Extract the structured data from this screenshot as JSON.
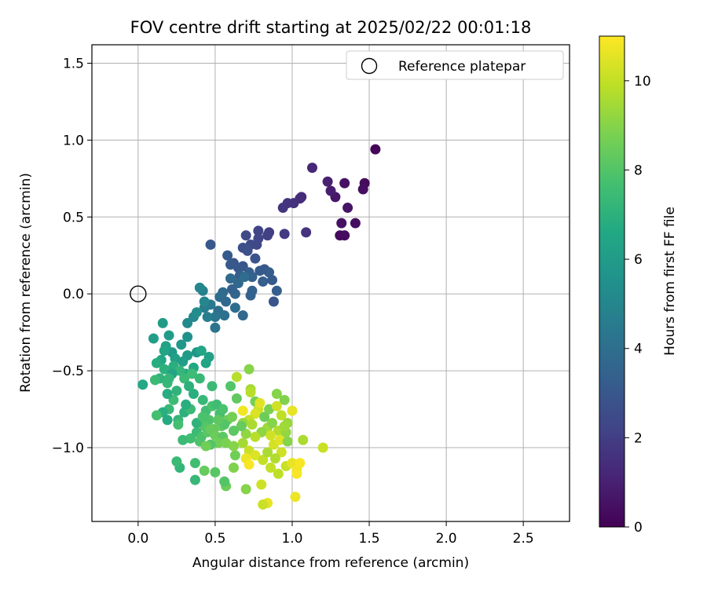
{
  "chart_data": {
    "type": "scatter",
    "title": "FOV centre drift starting at 2025/02/22 00:01:18",
    "xlabel": "Angular distance from reference (arcmin)",
    "ylabel": "Rotation from reference (arcmin)",
    "xlim": [
      -0.3,
      2.8
    ],
    "ylim": [
      -1.48,
      1.62
    ],
    "xticks": [
      "0.0",
      "0.5",
      "1.0",
      "1.5",
      "2.0",
      "2.5"
    ],
    "yticks": [
      "−1.0",
      "−0.5",
      "0.0",
      "0.5",
      "1.0",
      "1.5"
    ],
    "grid": true,
    "legend": {
      "location": "upper right",
      "entries": [
        "Reference platepar"
      ]
    },
    "colorbar": {
      "label": "Hours from first FF file",
      "range": [
        0,
        11
      ],
      "ticks": [
        "0",
        "2",
        "4",
        "6",
        "8",
        "10"
      ],
      "colormap": "viridis"
    },
    "reference_point": {
      "x": 0.0,
      "y": 0.0
    },
    "points": [
      [
        1.54,
        0.94,
        0.15
      ],
      [
        1.47,
        0.72,
        0.3
      ],
      [
        1.46,
        0.68,
        0.4
      ],
      [
        1.34,
        0.72,
        0.5
      ],
      [
        1.36,
        0.56,
        0.6
      ],
      [
        1.32,
        0.46,
        0.5
      ],
      [
        1.41,
        0.46,
        0.4
      ],
      [
        1.31,
        0.38,
        0.3
      ],
      [
        1.34,
        0.38,
        0.35
      ],
      [
        1.28,
        0.63,
        0.7
      ],
      [
        1.25,
        0.67,
        0.9
      ],
      [
        1.23,
        0.73,
        1.0
      ],
      [
        1.13,
        0.82,
        1.2
      ],
      [
        1.06,
        0.63,
        1.3
      ],
      [
        1.05,
        0.62,
        1.4
      ],
      [
        1.01,
        0.59,
        1.5
      ],
      [
        0.97,
        0.59,
        1.6
      ],
      [
        0.94,
        0.56,
        1.7
      ],
      [
        1.09,
        0.4,
        1.6
      ],
      [
        0.95,
        0.39,
        1.9
      ],
      [
        0.85,
        0.4,
        2.0
      ],
      [
        0.84,
        0.38,
        2.1
      ],
      [
        0.78,
        0.41,
        2.2
      ],
      [
        0.78,
        0.36,
        2.3
      ],
      [
        0.7,
        0.38,
        2.4
      ],
      [
        0.73,
        0.32,
        2.5
      ],
      [
        0.68,
        0.3,
        2.6
      ],
      [
        0.77,
        0.32,
        2.4
      ],
      [
        0.71,
        0.28,
        2.7
      ],
      [
        0.76,
        0.23,
        2.8
      ],
      [
        0.68,
        0.18,
        2.9
      ],
      [
        0.65,
        0.17,
        3.0
      ],
      [
        0.58,
        0.25,
        3.1
      ],
      [
        0.6,
        0.19,
        3.2
      ],
      [
        0.62,
        0.2,
        3.0
      ],
      [
        0.66,
        0.12,
        3.2
      ],
      [
        0.72,
        0.14,
        3.3
      ],
      [
        0.74,
        0.11,
        3.4
      ],
      [
        0.82,
        0.16,
        3.0
      ],
      [
        0.79,
        0.15,
        3.1
      ],
      [
        0.85,
        0.14,
        3.2
      ],
      [
        0.81,
        0.08,
        3.3
      ],
      [
        0.87,
        0.09,
        3.1
      ],
      [
        0.9,
        0.02,
        3.2
      ],
      [
        0.88,
        -0.05,
        2.9
      ],
      [
        0.74,
        0.02,
        3.5
      ],
      [
        0.73,
        -0.01,
        3.4
      ],
      [
        0.63,
        0.0,
        3.6
      ],
      [
        0.61,
        0.03,
        3.4
      ],
      [
        0.6,
        0.1,
        3.8
      ],
      [
        0.65,
        0.07,
        3.7
      ],
      [
        0.69,
        0.11,
        3.9
      ],
      [
        0.55,
        0.01,
        3.8
      ],
      [
        0.53,
        -0.02,
        3.9
      ],
      [
        0.57,
        -0.05,
        3.7
      ],
      [
        0.52,
        -0.11,
        4.0
      ],
      [
        0.56,
        -0.14,
        4.1
      ],
      [
        0.5,
        -0.15,
        4.3
      ],
      [
        0.47,
        -0.07,
        4.4
      ],
      [
        0.43,
        -0.09,
        4.6
      ],
      [
        0.68,
        -0.14,
        3.7
      ],
      [
        0.63,
        -0.09,
        3.9
      ],
      [
        0.5,
        -0.22,
        4.2
      ],
      [
        0.47,
        0.32,
        3.0
      ],
      [
        0.45,
        -0.15,
        4.6
      ],
      [
        0.42,
        0.02,
        4.8
      ],
      [
        0.4,
        0.04,
        5.0
      ],
      [
        0.43,
        -0.05,
        5.0
      ],
      [
        0.36,
        -0.15,
        5.1
      ],
      [
        0.38,
        -0.12,
        5.3
      ],
      [
        0.32,
        -0.19,
        5.2
      ],
      [
        0.32,
        -0.28,
        5.5
      ],
      [
        0.28,
        -0.33,
        5.8
      ],
      [
        0.22,
        -0.38,
        5.9
      ],
      [
        0.2,
        -0.27,
        6.0
      ],
      [
        0.16,
        -0.19,
        6.0
      ],
      [
        0.1,
        -0.29,
        6.1
      ],
      [
        0.18,
        -0.34,
        6.3
      ],
      [
        0.17,
        -0.37,
        6.4
      ],
      [
        0.24,
        -0.42,
        6.2
      ],
      [
        0.32,
        -0.4,
        6.0
      ],
      [
        0.29,
        -0.44,
        6.1
      ],
      [
        0.38,
        -0.38,
        5.8
      ],
      [
        0.41,
        -0.37,
        6.5
      ],
      [
        0.46,
        -0.41,
        6.2
      ],
      [
        0.44,
        -0.45,
        6.4
      ],
      [
        0.36,
        -0.48,
        6.6
      ],
      [
        0.31,
        -0.52,
        6.7
      ],
      [
        0.15,
        -0.43,
        6.5
      ],
      [
        0.12,
        -0.45,
        6.8
      ],
      [
        0.03,
        -0.59,
        6.6
      ],
      [
        0.17,
        -0.49,
        7.0
      ],
      [
        0.14,
        -0.55,
        7.1
      ],
      [
        0.19,
        -0.58,
        7.3
      ],
      [
        0.23,
        -0.47,
        6.9
      ],
      [
        0.27,
        -0.5,
        7.2
      ],
      [
        0.3,
        -0.55,
        7.4
      ],
      [
        0.35,
        -0.52,
        7.5
      ],
      [
        0.4,
        -0.55,
        7.3
      ],
      [
        0.25,
        -0.63,
        7.1
      ],
      [
        0.23,
        -0.69,
        7.5
      ],
      [
        0.19,
        -0.65,
        6.8
      ],
      [
        0.2,
        -0.75,
        7.3
      ],
      [
        0.16,
        -0.77,
        6.9
      ],
      [
        0.12,
        -0.79,
        7.7
      ],
      [
        0.19,
        -0.82,
        6.7
      ],
      [
        0.26,
        -0.82,
        7.2
      ],
      [
        0.3,
        -0.77,
        7.0
      ],
      [
        0.34,
        -0.75,
        7.4
      ],
      [
        0.36,
        -0.65,
        6.9
      ],
      [
        0.42,
        -0.69,
        7.3
      ],
      [
        0.44,
        -0.76,
        7.6
      ],
      [
        0.48,
        -0.73,
        7.8
      ],
      [
        0.51,
        -0.72,
        7.5
      ],
      [
        0.53,
        -0.78,
        7.7
      ],
      [
        0.46,
        -0.82,
        7.9
      ],
      [
        0.43,
        -0.86,
        8.0
      ],
      [
        0.38,
        -0.9,
        7.4
      ],
      [
        0.41,
        -0.93,
        7.8
      ],
      [
        0.45,
        -0.9,
        8.1
      ],
      [
        0.49,
        -0.88,
        8.3
      ],
      [
        0.5,
        -0.92,
        8.5
      ],
      [
        0.54,
        -0.86,
        8.4
      ],
      [
        0.55,
        -0.93,
        8.2
      ],
      [
        0.52,
        -0.97,
        8.6
      ],
      [
        0.57,
        -0.97,
        8.8
      ],
      [
        0.47,
        -0.98,
        8.0
      ],
      [
        0.4,
        -0.96,
        7.9
      ],
      [
        0.34,
        -0.94,
        7.6
      ],
      [
        0.29,
        -0.95,
        7.4
      ],
      [
        0.58,
        -0.82,
        8.5
      ],
      [
        0.61,
        -0.8,
        8.7
      ],
      [
        0.56,
        -0.85,
        8.0
      ],
      [
        0.6,
        -0.6,
        8.0
      ],
      [
        0.64,
        -0.68,
        8.3
      ],
      [
        0.64,
        -0.54,
        9.8
      ],
      [
        0.72,
        -0.49,
        9.0
      ],
      [
        0.73,
        -0.62,
        9.5
      ],
      [
        0.73,
        -0.64,
        9.8
      ],
      [
        0.76,
        -0.7,
        8.7
      ],
      [
        0.78,
        -0.75,
        10.2
      ],
      [
        0.79,
        -0.71,
        10.5
      ],
      [
        0.76,
        -0.78,
        10.4
      ],
      [
        0.68,
        -0.76,
        10.8
      ],
      [
        0.72,
        -0.82,
        10.0
      ],
      [
        0.68,
        -0.84,
        9.2
      ],
      [
        0.74,
        -0.85,
        9.6
      ],
      [
        0.82,
        -0.8,
        8.5
      ],
      [
        0.84,
        -0.87,
        9.4
      ],
      [
        0.87,
        -0.84,
        9.0
      ],
      [
        0.9,
        -0.65,
        9.0
      ],
      [
        0.95,
        -0.69,
        8.9
      ],
      [
        1.0,
        -0.76,
        10.6
      ],
      [
        0.97,
        -0.84,
        9.3
      ],
      [
        0.91,
        -0.89,
        9.7
      ],
      [
        0.86,
        -0.92,
        10.2
      ],
      [
        0.8,
        -0.9,
        9.1
      ],
      [
        0.76,
        -0.93,
        9.8
      ],
      [
        0.7,
        -0.91,
        9.2
      ],
      [
        0.68,
        -0.97,
        9.5
      ],
      [
        0.72,
        -1.02,
        10.1
      ],
      [
        0.76,
        -1.05,
        10.4
      ],
      [
        0.7,
        -1.07,
        10.7
      ],
      [
        0.81,
        -1.08,
        10.0
      ],
      [
        0.84,
        -1.03,
        9.6
      ],
      [
        0.88,
        -0.98,
        10.3
      ],
      [
        0.92,
        -0.95,
        10.5
      ],
      [
        0.96,
        -0.9,
        9.2
      ],
      [
        0.97,
        -0.96,
        9.0
      ],
      [
        0.93,
        -1.03,
        10.2
      ],
      [
        0.89,
        -1.07,
        9.7
      ],
      [
        0.86,
        -1.13,
        10.0
      ],
      [
        0.91,
        -1.17,
        9.9
      ],
      [
        0.96,
        -1.12,
        10.1
      ],
      [
        1.0,
        -1.1,
        10.6
      ],
      [
        1.03,
        -1.14,
        10.8
      ],
      [
        1.03,
        -1.17,
        10.9
      ],
      [
        1.02,
        -1.32,
        10.7
      ],
      [
        0.84,
        -1.36,
        10.6
      ],
      [
        0.81,
        -1.37,
        10.1
      ],
      [
        0.8,
        -1.24,
        10.2
      ],
      [
        0.72,
        -1.11,
        10.9
      ],
      [
        0.7,
        -1.27,
        9.0
      ],
      [
        0.62,
        -1.13,
        8.9
      ],
      [
        0.57,
        -1.25,
        8.5
      ],
      [
        0.56,
        -1.22,
        8.0
      ],
      [
        0.5,
        -1.16,
        8.1
      ],
      [
        0.43,
        -1.15,
        8.4
      ],
      [
        0.37,
        -1.21,
        7.3
      ],
      [
        0.37,
        -1.1,
        7.6
      ],
      [
        0.27,
        -1.13,
        7.2
      ],
      [
        0.25,
        -1.09,
        7.4
      ],
      [
        0.63,
        -1.05,
        8.6
      ],
      [
        0.67,
        -0.86,
        8.4
      ],
      [
        1.07,
        -0.95,
        9.6
      ],
      [
        1.2,
        -1.0,
        10.1
      ],
      [
        0.55,
        -0.75,
        7.8
      ],
      [
        0.48,
        -0.6,
        7.4
      ],
      [
        0.33,
        -0.6,
        7.0
      ],
      [
        0.22,
        -0.52,
        6.4
      ],
      [
        0.2,
        -0.55,
        7.2
      ],
      [
        0.11,
        -0.56,
        7.4
      ],
      [
        0.26,
        -0.85,
        7.7
      ],
      [
        0.31,
        -0.72,
        6.9
      ],
      [
        0.38,
        -0.84,
        7.1
      ],
      [
        0.42,
        -0.8,
        7.8
      ],
      [
        0.52,
        -0.82,
        8.2
      ],
      [
        0.47,
        -0.88,
        8.4
      ],
      [
        0.44,
        -0.99,
        8.6
      ],
      [
        0.62,
        -0.89,
        8.2
      ],
      [
        0.93,
        -0.79,
        9.9
      ],
      [
        0.62,
        -0.99,
        9.0
      ],
      [
        0.85,
        -0.75,
        8.8
      ],
      [
        0.9,
        -0.73,
        10.2
      ],
      [
        0.95,
        -0.86,
        9.4
      ],
      [
        1.05,
        -1.1,
        10.9
      ]
    ]
  }
}
